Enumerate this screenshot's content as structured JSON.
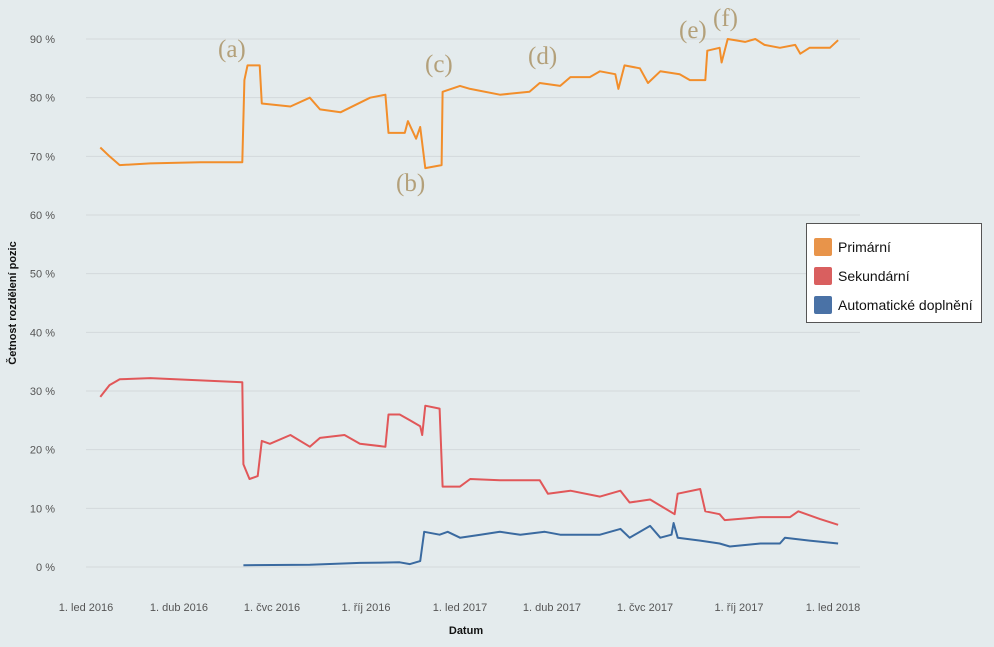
{
  "chart_data": {
    "type": "line",
    "xlabel": "Datum",
    "ylabel": "Četnost rozdělení pozic",
    "x_ticks": [
      {
        "date": "2016-01-01",
        "label": "1. led 2016"
      },
      {
        "date": "2016-04-01",
        "label": "1. dub 2016"
      },
      {
        "date": "2016-07-01",
        "label": "1. čvc 2016"
      },
      {
        "date": "2016-10-01",
        "label": "1. říj 2016"
      },
      {
        "date": "2017-01-01",
        "label": "1. led 2017"
      },
      {
        "date": "2017-04-01",
        "label": "1. dub 2017"
      },
      {
        "date": "2017-07-01",
        "label": "1. čvc 2017"
      },
      {
        "date": "2017-10-01",
        "label": "1. říj 2017"
      },
      {
        "date": "2018-01-01",
        "label": "1. led 2018"
      }
    ],
    "y_ticks": [
      0,
      10,
      20,
      30,
      40,
      50,
      60,
      70,
      80,
      90
    ],
    "y_tick_format": "{v} %",
    "ylim": [
      0,
      90
    ],
    "xlim": [
      "2016-01-01",
      "2018-01-01"
    ],
    "grid": true,
    "legend_position": "right",
    "series": [
      {
        "name": "Primární",
        "color": "#f28e2b",
        "legend_color": "#e8944a",
        "points": [
          [
            "2016-01-15",
            71.5
          ],
          [
            "2016-01-24",
            70
          ],
          [
            "2016-02-03",
            68.5
          ],
          [
            "2016-03-04",
            68.8
          ],
          [
            "2016-04-22",
            69
          ],
          [
            "2016-06-02",
            69
          ],
          [
            "2016-06-04",
            83
          ],
          [
            "2016-06-07",
            85.5
          ],
          [
            "2016-06-19",
            85.5
          ],
          [
            "2016-06-21",
            79
          ],
          [
            "2016-07-19",
            78.5
          ],
          [
            "2016-08-07",
            80
          ],
          [
            "2016-08-17",
            78
          ],
          [
            "2016-09-06",
            77.5
          ],
          [
            "2016-10-05",
            80
          ],
          [
            "2016-10-20",
            80.5
          ],
          [
            "2016-10-23",
            74
          ],
          [
            "2016-11-08",
            74
          ],
          [
            "2016-11-11",
            76
          ],
          [
            "2016-11-19",
            73
          ],
          [
            "2016-11-23",
            75
          ],
          [
            "2016-11-28",
            68
          ],
          [
            "2016-12-14",
            68.5
          ],
          [
            "2016-12-15",
            81
          ],
          [
            "2017-01-01",
            82
          ],
          [
            "2017-01-11",
            81.5
          ],
          [
            "2017-02-09",
            80.5
          ],
          [
            "2017-03-10",
            81
          ],
          [
            "2017-03-20",
            82.5
          ],
          [
            "2017-04-09",
            82
          ],
          [
            "2017-04-19",
            83.5
          ],
          [
            "2017-05-08",
            83.5
          ],
          [
            "2017-05-18",
            84.5
          ],
          [
            "2017-06-02",
            84
          ],
          [
            "2017-06-05",
            81.5
          ],
          [
            "2017-06-11",
            85.5
          ],
          [
            "2017-06-26",
            85
          ],
          [
            "2017-07-04",
            82.5
          ],
          [
            "2017-07-16",
            84.5
          ],
          [
            "2017-08-04",
            84
          ],
          [
            "2017-08-14",
            83
          ],
          [
            "2017-08-29",
            83
          ],
          [
            "2017-08-31",
            88
          ],
          [
            "2017-09-12",
            88.5
          ],
          [
            "2017-09-14",
            86
          ],
          [
            "2017-09-20",
            90
          ],
          [
            "2017-10-07",
            89.5
          ],
          [
            "2017-10-17",
            90
          ],
          [
            "2017-10-26",
            89
          ],
          [
            "2017-11-10",
            88.5
          ],
          [
            "2017-11-25",
            89
          ],
          [
            "2017-11-30",
            87.5
          ],
          [
            "2017-12-09",
            88.5
          ],
          [
            "2017-12-29",
            88.5
          ],
          [
            "2018-01-06",
            89.8
          ]
        ]
      },
      {
        "name": "Sekundární",
        "color": "#e15759",
        "legend_color": "#d95f5f",
        "points": [
          [
            "2016-01-15",
            29
          ],
          [
            "2016-01-24",
            31
          ],
          [
            "2016-02-03",
            32
          ],
          [
            "2016-03-04",
            32.2
          ],
          [
            "2016-04-22",
            31.8
          ],
          [
            "2016-06-02",
            31.5
          ],
          [
            "2016-06-03",
            17.5
          ],
          [
            "2016-06-09",
            15
          ],
          [
            "2016-06-17",
            15.5
          ],
          [
            "2016-06-21",
            21.5
          ],
          [
            "2016-06-29",
            21
          ],
          [
            "2016-07-19",
            22.5
          ],
          [
            "2016-08-07",
            20.5
          ],
          [
            "2016-08-17",
            22
          ],
          [
            "2016-09-10",
            22.5
          ],
          [
            "2016-09-25",
            21
          ],
          [
            "2016-10-20",
            20.5
          ],
          [
            "2016-10-23",
            26
          ],
          [
            "2016-11-03",
            26
          ],
          [
            "2016-11-13",
            25
          ],
          [
            "2016-11-23",
            24
          ],
          [
            "2016-11-25",
            22.5
          ],
          [
            "2016-11-28",
            27.5
          ],
          [
            "2016-12-12",
            27
          ],
          [
            "2016-12-15",
            13.7
          ],
          [
            "2017-01-01",
            13.7
          ],
          [
            "2017-01-11",
            15
          ],
          [
            "2017-02-09",
            14.8
          ],
          [
            "2017-03-20",
            14.8
          ],
          [
            "2017-03-28",
            12.5
          ],
          [
            "2017-04-19",
            13
          ],
          [
            "2017-05-18",
            12
          ],
          [
            "2017-06-07",
            13
          ],
          [
            "2017-06-16",
            11
          ],
          [
            "2017-07-06",
            11.5
          ],
          [
            "2017-07-30",
            9
          ],
          [
            "2017-08-02",
            12.5
          ],
          [
            "2017-08-24",
            13.3
          ],
          [
            "2017-08-29",
            9.5
          ],
          [
            "2017-09-12",
            9
          ],
          [
            "2017-09-17",
            8
          ],
          [
            "2017-10-22",
            8.5
          ],
          [
            "2017-11-20",
            8.5
          ],
          [
            "2017-11-28",
            9.5
          ],
          [
            "2017-12-19",
            8.2
          ],
          [
            "2018-01-06",
            7.2
          ]
        ]
      },
      {
        "name": "Automatické doplnění",
        "color": "#3a6aa0",
        "legend_color": "#4a72a6",
        "points": [
          [
            "2016-06-03",
            0.3
          ],
          [
            "2016-08-07",
            0.4
          ],
          [
            "2016-09-25",
            0.7
          ],
          [
            "2016-11-03",
            0.8
          ],
          [
            "2016-11-13",
            0.5
          ],
          [
            "2016-11-23",
            1
          ],
          [
            "2016-11-27",
            6
          ],
          [
            "2016-12-12",
            5.5
          ],
          [
            "2016-12-20",
            6
          ],
          [
            "2017-01-01",
            5
          ],
          [
            "2017-01-21",
            5.5
          ],
          [
            "2017-02-09",
            6
          ],
          [
            "2017-03-01",
            5.5
          ],
          [
            "2017-03-25",
            6
          ],
          [
            "2017-04-09",
            5.5
          ],
          [
            "2017-05-18",
            5.5
          ],
          [
            "2017-06-07",
            6.5
          ],
          [
            "2017-06-16",
            5
          ],
          [
            "2017-07-06",
            7
          ],
          [
            "2017-07-16",
            5
          ],
          [
            "2017-07-27",
            5.5
          ],
          [
            "2017-07-29",
            7.5
          ],
          [
            "2017-08-02",
            5
          ],
          [
            "2017-08-24",
            4.5
          ],
          [
            "2017-09-12",
            4
          ],
          [
            "2017-09-22",
            3.5
          ],
          [
            "2017-10-22",
            4
          ],
          [
            "2017-11-10",
            4
          ],
          [
            "2017-11-15",
            5
          ],
          [
            "2017-12-09",
            4.5
          ],
          [
            "2018-01-06",
            4
          ]
        ]
      }
    ],
    "annotations": [
      "(a)",
      "(b)",
      "(c)",
      "(d)",
      "(e)",
      "(f)"
    ]
  }
}
